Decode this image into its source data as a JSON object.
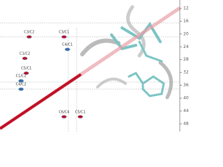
{
  "chart_data": {
    "type": "scatter",
    "xlim": [
      49.5,
      11.9
    ],
    "ylim": [
      9.4,
      50.4
    ],
    "yticks": [
      12,
      16,
      20,
      24,
      28,
      32,
      36,
      40,
      44,
      48
    ],
    "series": [
      {
        "name": "C3/C2",
        "color": "#c01025",
        "x": [
          43.4
        ],
        "y": [
          20.9
        ]
      },
      {
        "name": "C3/C1",
        "color": "#c01025",
        "x": [
          36.1
        ],
        "y": [
          20.9
        ]
      },
      {
        "name": "C4/C1",
        "color": "#3a6fa8",
        "x": [
          35.4
        ],
        "y": [
          24.8
        ]
      },
      {
        "name": "C1/C2",
        "color": "#c01025",
        "x": [
          44.3
        ],
        "y": [
          27.6
        ]
      },
      {
        "name": "C5/C1",
        "color": "#c01025",
        "x": [
          44.0
        ],
        "y": [
          32.2
        ]
      },
      {
        "name": "C1/C2",
        "color": "#3a6fa8",
        "x": [
          45.1
        ],
        "y": [
          34.6
        ]
      },
      {
        "name": "C4/C2",
        "color": "#3a6fa8",
        "x": [
          45.1
        ],
        "y": [
          37.2
        ]
      },
      {
        "name": "C6/C4",
        "color": "#c01025",
        "x": [
          36.1
        ],
        "y": [
          45.8
        ]
      },
      {
        "name": "C5/C1",
        "color": "#c01025",
        "x": [
          32.7
        ],
        "y": [
          45.8
        ]
      }
    ]
  }
}
